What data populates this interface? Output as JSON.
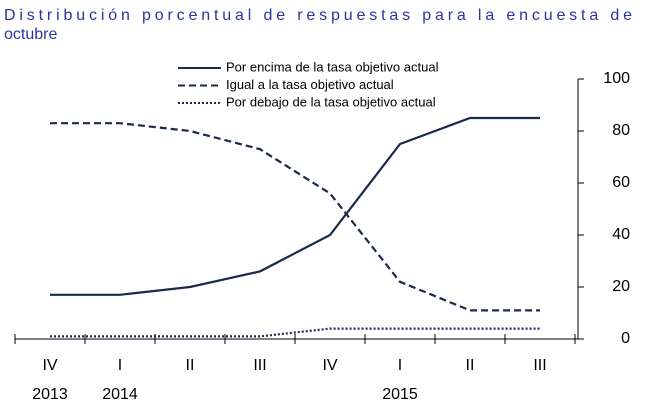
{
  "chart_data": {
    "type": "line",
    "title": "Distribución porcentual de respuestas para la encuesta de octubre",
    "categories": [
      "IV",
      "I",
      "II",
      "III",
      "IV",
      "I",
      "II",
      "III"
    ],
    "years": [
      "2013",
      "2014",
      null,
      null,
      null,
      "2015",
      null,
      null
    ],
    "series": [
      {
        "name": "Por encima de la tasa objetivo actual",
        "color": "#1b2a4a",
        "dash": "solid",
        "values": [
          17,
          17,
          20,
          26,
          40,
          75,
          85,
          85
        ]
      },
      {
        "name": "Igual a la tasa objetivo actual",
        "color": "#1b2a4a",
        "dash": "dashed",
        "values": [
          83,
          83,
          80,
          73,
          56,
          22,
          11,
          11
        ]
      },
      {
        "name": "Por debajo de la tasa objetivo actual",
        "color": "#1b2a4a",
        "dash": "dotted",
        "values": [
          1,
          1,
          1,
          1,
          4,
          4,
          4,
          4
        ]
      }
    ],
    "ylim": [
      0,
      100
    ],
    "yticks": [
      0,
      20,
      40,
      60,
      80,
      100
    ],
    "grid": false
  }
}
